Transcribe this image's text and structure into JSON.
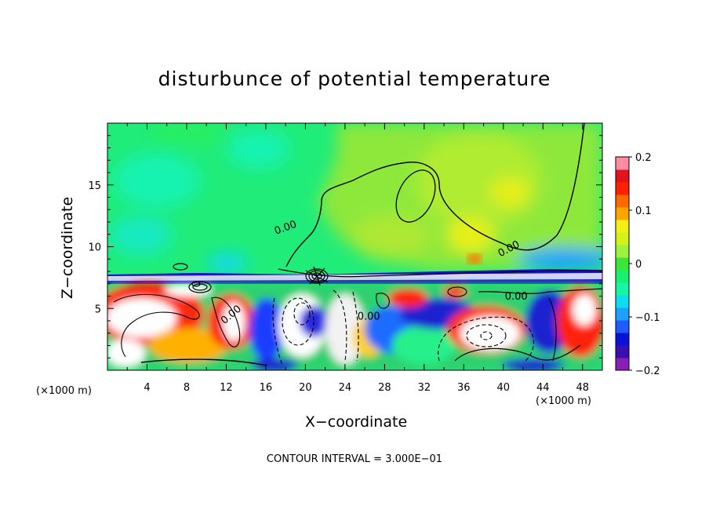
{
  "chart_data": {
    "type": "heatmap",
    "title": "disturbunce of potential temperature",
    "xlabel": "X−coordinate",
    "ylabel": "Z−coordinate",
    "x_unit_label": "(×1000 m)",
    "footer": "CONTOUR INTERVAL = 3.000E−01",
    "x_ticks": [
      "4",
      "8",
      "12",
      "16",
      "20",
      "24",
      "28",
      "32",
      "36",
      "40",
      "44",
      "48"
    ],
    "x_tick_values": [
      4,
      8,
      12,
      16,
      20,
      24,
      28,
      32,
      36,
      40,
      44,
      48
    ],
    "xlim": [
      0,
      50
    ],
    "y_ticks": [
      "5",
      "10",
      "15"
    ],
    "y_tick_values": [
      5,
      10,
      15
    ],
    "ylim": [
      0,
      20
    ],
    "colorbar": {
      "min": -0.2,
      "max": 0.2,
      "tick_labels": [
        "0.2",
        "0.1",
        "0",
        "−0.1",
        "−0.2"
      ],
      "tick_values": [
        0.2,
        0.1,
        0,
        -0.1,
        -0.2
      ],
      "colors": [
        "#8a1fb5",
        "#3a0fb0",
        "#0a12d8",
        "#1f5cff",
        "#1fa0ff",
        "#10dcf0",
        "#14f5a6",
        "#18f070",
        "#3ae63a",
        "#9cf23c",
        "#d4f21a",
        "#f0f014",
        "#ffa500",
        "#ff6a00",
        "#ff2000",
        "#e0141e",
        "#ff8ca0"
      ]
    },
    "contour_labels": [
      {
        "text": "0.00",
        "x": 18.1,
        "y": 11.3,
        "angle": -20
      },
      {
        "text": "0.00",
        "x": 40.7,
        "y": 9.6,
        "angle": -28
      },
      {
        "text": "0.00",
        "x": 41.3,
        "y": 5.7,
        "angle": 0
      },
      {
        "text": "0.00",
        "x": 26.4,
        "y": 4.1,
        "angle": 0
      },
      {
        "text": "0.00",
        "x": 12.7,
        "y": 4.3,
        "angle": -40
      }
    ],
    "contour_interval": 0.3
  }
}
